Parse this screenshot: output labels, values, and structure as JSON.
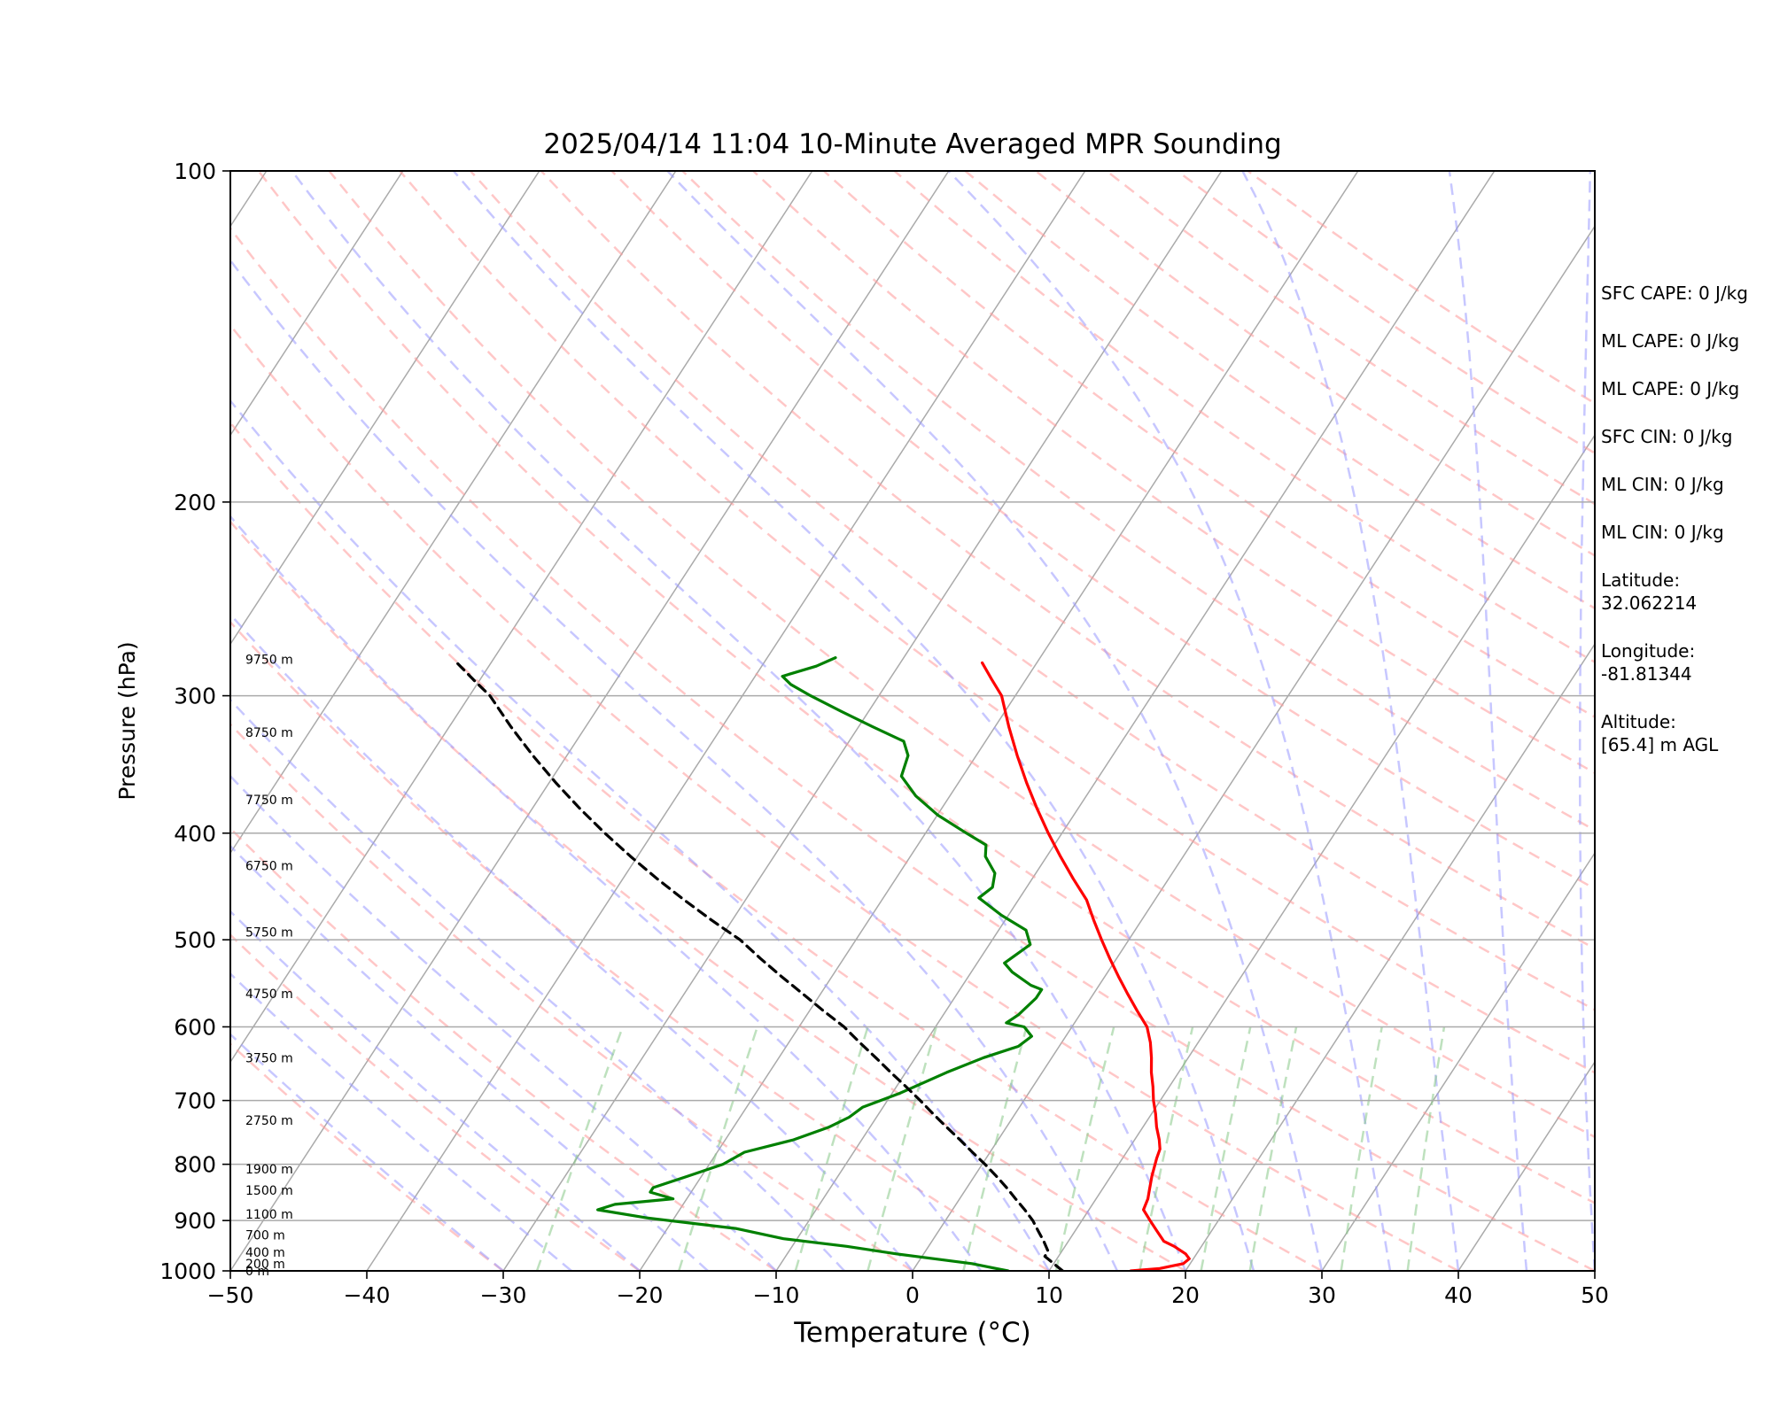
{
  "chart_data": {
    "type": "skew-t",
    "title": "2025/04/14 11:04 10-Minute Averaged MPR Sounding",
    "xlabel": "Temperature (°C)",
    "ylabel": "Pressure (hPa)",
    "xlim": [
      -50,
      50
    ],
    "ylim": [
      1000,
      100
    ],
    "y_scale": "log",
    "grid": true,
    "x_ticks": [
      "−50",
      "−40",
      "−30",
      "−20",
      "−10",
      "0",
      "10",
      "20",
      "30",
      "40",
      "50"
    ],
    "x_tick_values": [
      -50,
      -40,
      -30,
      -20,
      -10,
      0,
      10,
      20,
      30,
      40,
      50
    ],
    "y_ticks": [
      "1000",
      "900",
      "800",
      "700",
      "600",
      "500",
      "400",
      "300",
      "200",
      "100"
    ],
    "y_tick_values": [
      1000,
      900,
      800,
      700,
      600,
      500,
      400,
      300,
      200,
      100
    ],
    "height_labels": [
      {
        "p": 1000,
        "text": "0 m"
      },
      {
        "p": 985,
        "text": "200 m"
      },
      {
        "p": 962,
        "text": "400 m"
      },
      {
        "p": 928,
        "text": "700 m"
      },
      {
        "p": 888,
        "text": "1100 m"
      },
      {
        "p": 845,
        "text": "1500 m"
      },
      {
        "p": 808,
        "text": "1900 m"
      },
      {
        "p": 730,
        "text": "2750 m"
      },
      {
        "p": 640,
        "text": "3750 m"
      },
      {
        "p": 560,
        "text": "4750 m"
      },
      {
        "p": 492,
        "text": "5750 m"
      },
      {
        "p": 428,
        "text": "6750 m"
      },
      {
        "p": 373,
        "text": "7750 m"
      },
      {
        "p": 324,
        "text": "8750 m"
      },
      {
        "p": 278,
        "text": "9750 m"
      }
    ],
    "series": [
      {
        "color": "#ff0000",
        "role": "temperature",
        "points": [
          [
            16,
            1000
          ],
          [
            18,
            995
          ],
          [
            19.5,
            985
          ],
          [
            19.7,
            975
          ],
          [
            19.2,
            965
          ],
          [
            18,
            950
          ],
          [
            17,
            940
          ],
          [
            16,
            920
          ],
          [
            15,
            900
          ],
          [
            14,
            880
          ],
          [
            13.8,
            860
          ],
          [
            13.5,
            845
          ],
          [
            13,
            820
          ],
          [
            12.5,
            790
          ],
          [
            12.3,
            775
          ],
          [
            11.8,
            760
          ],
          [
            11,
            740
          ],
          [
            10.3,
            720
          ],
          [
            9.5,
            700
          ],
          [
            8.8,
            680
          ],
          [
            8,
            660
          ],
          [
            7.3,
            640
          ],
          [
            6.5,
            620
          ],
          [
            5.5,
            600
          ],
          [
            4,
            580
          ],
          [
            2.5,
            560
          ],
          [
            1,
            540
          ],
          [
            -0.5,
            520
          ],
          [
            -2,
            500
          ],
          [
            -3.5,
            480
          ],
          [
            -5,
            460
          ],
          [
            -7,
            440
          ],
          [
            -9,
            420
          ],
          [
            -11,
            400
          ],
          [
            -13,
            380
          ],
          [
            -15,
            360
          ],
          [
            -17,
            340
          ],
          [
            -19,
            320
          ],
          [
            -21,
            300
          ],
          [
            -22.5,
            290
          ],
          [
            -24,
            280
          ]
        ]
      },
      {
        "color": "#008000",
        "role": "dewpoint",
        "points": [
          [
            7,
            1000
          ],
          [
            6,
            995
          ],
          [
            4,
            985
          ],
          [
            1,
            975
          ],
          [
            -2,
            965
          ],
          [
            -6,
            950
          ],
          [
            -11,
            935
          ],
          [
            -15,
            915
          ],
          [
            -22,
            895
          ],
          [
            -26,
            880
          ],
          [
            -25,
            870
          ],
          [
            -21,
            860
          ],
          [
            -23,
            848
          ],
          [
            -23,
            840
          ],
          [
            -21,
            820
          ],
          [
            -19,
            800
          ],
          [
            -18,
            780
          ],
          [
            -15,
            760
          ],
          [
            -13,
            740
          ],
          [
            -12,
            725
          ],
          [
            -11.5,
            710
          ],
          [
            -10.5,
            700
          ],
          [
            -9.5,
            690
          ],
          [
            -7,
            660
          ],
          [
            -5,
            640
          ],
          [
            -3,
            625
          ],
          [
            -2.5,
            612
          ],
          [
            -3.5,
            600
          ],
          [
            -5,
            595
          ],
          [
            -4.5,
            585
          ],
          [
            -4,
            565
          ],
          [
            -4,
            555
          ],
          [
            -5,
            550
          ],
          [
            -7,
            535
          ],
          [
            -8,
            525
          ],
          [
            -7,
            505
          ],
          [
            -8,
            490
          ],
          [
            -10.5,
            475
          ],
          [
            -13,
            458
          ],
          [
            -12.5,
            448
          ],
          [
            -13,
            435
          ],
          [
            -14.5,
            420
          ],
          [
            -15,
            410
          ],
          [
            -17,
            400
          ],
          [
            -20,
            385
          ],
          [
            -22.5,
            370
          ],
          [
            -24.5,
            355
          ],
          [
            -25,
            340
          ],
          [
            -26,
            330
          ],
          [
            -29,
            320
          ],
          [
            -32,
            310
          ],
          [
            -35,
            300
          ],
          [
            -37,
            293
          ],
          [
            -38,
            288
          ],
          [
            -36,
            282
          ],
          [
            -35,
            277
          ]
        ]
      },
      {
        "color": "#000000",
        "role": "parcel-profile",
        "dashed": true,
        "points": [
          [
            11,
            1000
          ],
          [
            10,
            985
          ],
          [
            9,
            970
          ],
          [
            9,
            960
          ],
          [
            8.2,
            940
          ],
          [
            7.3,
            920
          ],
          [
            6.4,
            900
          ],
          [
            5.3,
            880
          ],
          [
            4.1,
            860
          ],
          [
            2.9,
            840
          ],
          [
            1.6,
            820
          ],
          [
            0.2,
            800
          ],
          [
            -1.3,
            780
          ],
          [
            -2.8,
            760
          ],
          [
            -4.4,
            740
          ],
          [
            -6,
            720
          ],
          [
            -7.6,
            700
          ],
          [
            -9.3,
            680
          ],
          [
            -11.1,
            660
          ],
          [
            -12.9,
            640
          ],
          [
            -14.8,
            620
          ],
          [
            -16.7,
            600
          ],
          [
            -19,
            580
          ],
          [
            -21.3,
            560
          ],
          [
            -23.7,
            540
          ],
          [
            -26.1,
            520
          ],
          [
            -28.5,
            500
          ],
          [
            -31.5,
            480
          ],
          [
            -34.5,
            460
          ],
          [
            -37.5,
            440
          ],
          [
            -40.5,
            420
          ],
          [
            -43.5,
            400
          ],
          [
            -46.5,
            380
          ],
          [
            -49.5,
            360
          ],
          [
            -52.5,
            340
          ],
          [
            -55.5,
            320
          ],
          [
            -58.5,
            300
          ],
          [
            -60.5,
            290
          ],
          [
            -62.5,
            280
          ]
        ]
      }
    ]
  },
  "indices": [
    {
      "label": "SFC CAPE: 0 J/kg"
    },
    {
      "label": "ML CAPE: 0 J/kg"
    },
    {
      "label": "ML CAPE: 0 J/kg"
    },
    {
      "label": "SFC CIN: 0 J/kg"
    },
    {
      "label": "ML CIN: 0 J/kg"
    },
    {
      "label": "ML CIN: 0 J/kg"
    }
  ],
  "location": {
    "latitude_label": "Latitude:",
    "latitude_value": "32.062214",
    "longitude_label": "Longitude:",
    "longitude_value": "-81.81344",
    "altitude_label": "Altitude:",
    "altitude_value": "[65.4] m AGL"
  },
  "colors": {
    "temperature": "#ff0000",
    "dewpoint": "#008000",
    "parcel": "#000000",
    "isotherms": "#aaaaaa",
    "dry_adiabats": "#ff9999",
    "moist_adiabats": "#9999ff",
    "mixing_ratio": "#88c888"
  }
}
